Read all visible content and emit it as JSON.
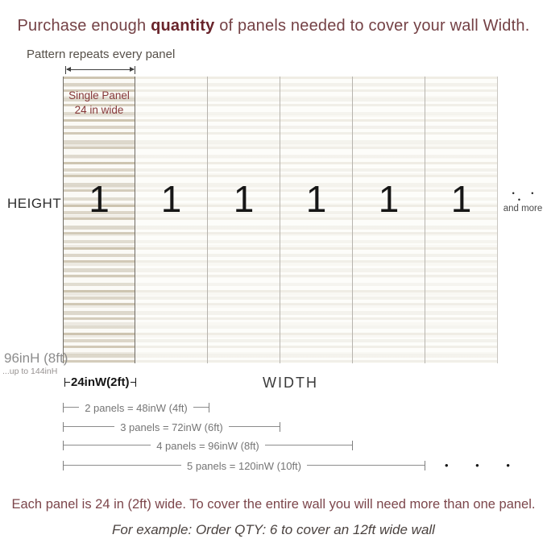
{
  "title": {
    "pre": "Purchase enough ",
    "em": "quantity",
    "post": " of panels needed to cover your wall Width."
  },
  "pattern_note": "Pattern repeats every panel",
  "single_panel": {
    "line1": "Single Panel",
    "line2": "24 in wide"
  },
  "panel_number": "1",
  "panel_count": 6,
  "height_label": "HEIGHT",
  "more": {
    "dots": "• • •",
    "label": "and more"
  },
  "panel_height": "96inH (8ft)",
  "panel_height_note": "...up to 144inH",
  "panel_width": "24inW(2ft)",
  "width_label": "WIDTH",
  "width_rows": [
    {
      "panels": 2,
      "label": "2 panels = 48inW (4ft)"
    },
    {
      "panels": 3,
      "label": "3 panels = 72inW (6ft)"
    },
    {
      "panels": 4,
      "label": "4 panels = 96inW (8ft)"
    },
    {
      "panels": 5,
      "label": "5 panels = 120inW (10ft)"
    }
  ],
  "row_ellipsis": "• • •",
  "footer": {
    "line1": "Each panel is 24 in (2ft) wide. To cover the entire wall you will need more than one panel.",
    "line2": "For example: Order QTY: 6 to cover an 12ft wide wall"
  },
  "colors": {
    "maroon_title": "#744145",
    "maroon_bold": "#69242b",
    "maroon_footer": "#7c464b",
    "panel_label": "#87393a",
    "stripe_beige": "#d6cfc0"
  }
}
